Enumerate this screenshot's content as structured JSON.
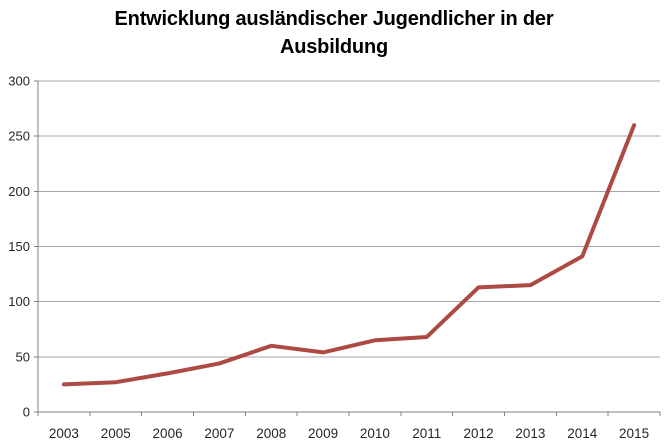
{
  "chart_data": {
    "type": "line",
    "title": "Entwicklung ausländischer Jugendlicher in der Ausbildung",
    "title_lines": [
      "Entwicklung ausländischer Jugendlicher in der",
      "Ausbildung"
    ],
    "categories": [
      "2003",
      "2005",
      "2006",
      "2007",
      "2008",
      "2009",
      "2010",
      "2011",
      "2012",
      "2013",
      "2014",
      "2015"
    ],
    "values": [
      25,
      27,
      35,
      44,
      60,
      54,
      65,
      68,
      113,
      115,
      141,
      260
    ],
    "xlabel": "",
    "ylabel": "",
    "ylim": [
      0,
      300
    ],
    "yticks": [
      0,
      50,
      100,
      150,
      200,
      250,
      300
    ],
    "grid": "horizontal",
    "legend": "none",
    "line_color": "#ad4a44",
    "gridline_color": "#a6a6a6",
    "axis_color": "#808080",
    "label_color": "#262626",
    "title_color": "#000000",
    "background_color": "#ffffff"
  }
}
